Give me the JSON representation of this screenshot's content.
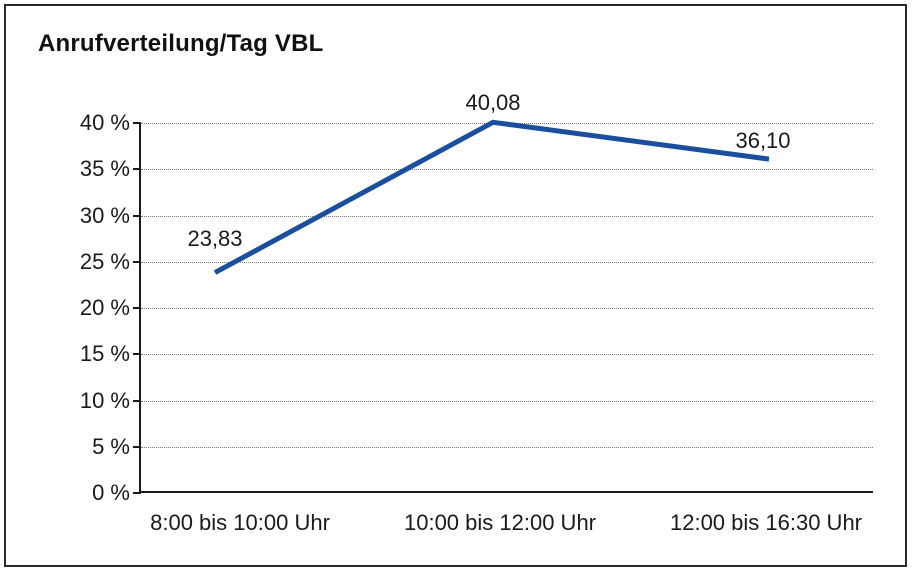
{
  "chart": {
    "title": "Anrufverteilung/Tag VBL"
  },
  "chart_data": {
    "type": "line",
    "title": "Anrufverteilung/Tag VBL",
    "categories": [
      "8:00 bis 10:00 Uhr",
      "10:00 bis 12:00 Uhr",
      "12:00 bis 16:30 Uhr"
    ],
    "values": [
      23.83,
      40.08,
      36.1
    ],
    "value_labels": [
      "23,83",
      "40,08",
      "36,10"
    ],
    "series_color": "#1a4f9d",
    "xlabel": "",
    "ylabel": "",
    "ylim": [
      0,
      40
    ],
    "y_tick_step": 5,
    "y_tick_labels": [
      "0 %",
      "5 %",
      "10 %",
      "15 %",
      "20 %",
      "25 %",
      "30 %",
      "35 %",
      "40 %"
    ],
    "grid": "horizontal-dotted",
    "legend": "none",
    "markers": "none"
  }
}
